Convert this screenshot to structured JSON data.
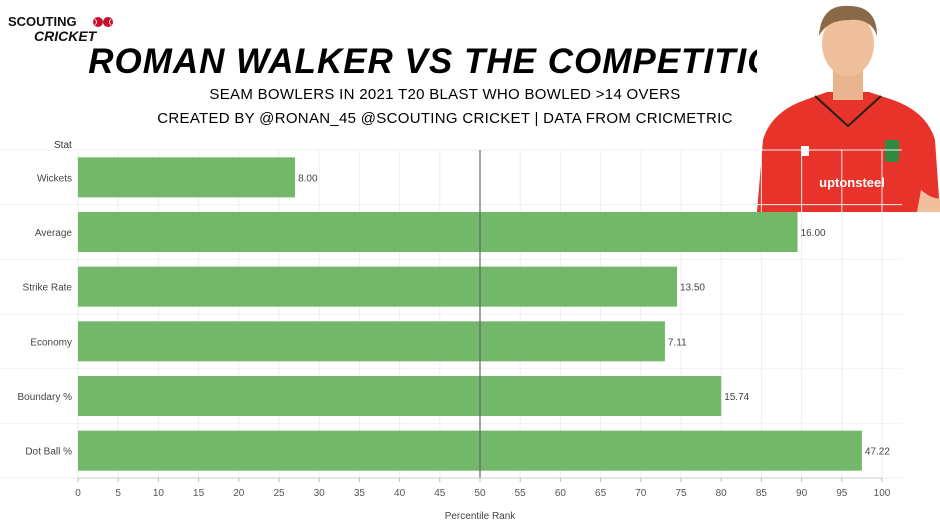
{
  "logo": {
    "line1": "SCOUTING",
    "line2": "CRICKET"
  },
  "header": {
    "title": "ROMAN WALKER VS THE COMPETITION",
    "subtitle": "SEAM BOWLERS IN 2021 T20 BLAST WHO BOWLED >14 OVERS",
    "credit": "CREATED BY @RONAN_45 @SCOUTING CRICKET | DATA FROM CRICMETRIC"
  },
  "player_photo": {
    "sponsor_text": "uptonsteel",
    "shirt_color": "#e8332a"
  },
  "chart_data": {
    "type": "bar",
    "orientation": "horizontal",
    "row_header": "Stat",
    "xlabel": "Percentile Rank",
    "xlim": [
      0,
      100
    ],
    "xticks": [
      0,
      5,
      10,
      15,
      20,
      25,
      30,
      35,
      40,
      45,
      50,
      55,
      60,
      65,
      70,
      75,
      80,
      85,
      90,
      95,
      100
    ],
    "reference_line": 50,
    "bar_color": "#72b76a",
    "categories": [
      "Wickets",
      "Average",
      "Strike Rate",
      "Economy",
      "Boundary %",
      "Dot Ball %"
    ],
    "values": [
      27,
      89.5,
      74.5,
      73,
      80,
      97.5
    ],
    "data_labels": [
      "8.00",
      "16.00",
      "13.50",
      "7.11",
      "15.74",
      "47.22"
    ],
    "grid": "vertical"
  }
}
